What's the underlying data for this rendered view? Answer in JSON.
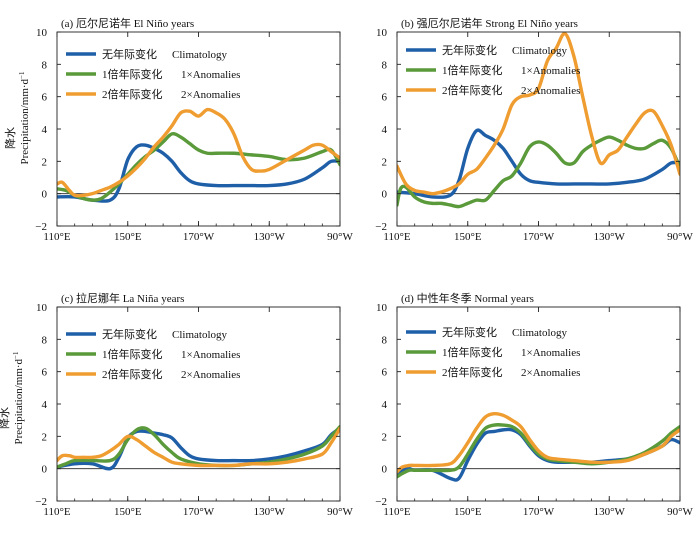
{
  "figure": {
    "ylabel_cn": "降水",
    "ylabel_en": "Precipitation/mm·d",
    "ylabel_sup": "−1",
    "xticklabels": [
      "110°E",
      "150°E",
      "170°W",
      "130°W",
      "90°W"
    ],
    "yticklabels": [
      "−2",
      "0",
      "2",
      "4",
      "6",
      "8",
      "10"
    ],
    "colors": {
      "climatology": "#1f5fa8",
      "anom1": "#5a9a3a",
      "anom2": "#ef9d30"
    }
  },
  "chart_data": [
    {
      "type": "line",
      "title": "(a) 厄尔尼诺年 El Niño years",
      "xticks": [
        110,
        150,
        190,
        230,
        270
      ],
      "xlim": [
        110,
        270
      ],
      "ylim": [
        -2,
        10
      ],
      "legend_position": "top",
      "series": [
        {
          "key": "climatology",
          "name": "无年际变化 Climatology",
          "x": [
            110,
            120,
            130,
            140,
            145,
            150,
            155,
            160,
            165,
            170,
            175,
            180,
            185,
            190,
            200,
            210,
            220,
            230,
            240,
            250,
            260,
            265,
            270
          ],
          "y": [
            -0.2,
            -0.2,
            -0.4,
            -0.4,
            0.3,
            2.1,
            2.9,
            3.0,
            2.8,
            2.5,
            2.0,
            1.3,
            0.8,
            0.6,
            0.5,
            0.5,
            0.5,
            0.5,
            0.6,
            0.9,
            1.6,
            2.0,
            2.0
          ]
        },
        {
          "key": "anom1",
          "name": "1倍年际变化 1×Anomalies",
          "x": [
            110,
            115,
            120,
            125,
            130,
            135,
            140,
            145,
            150,
            155,
            160,
            165,
            170,
            175,
            180,
            185,
            190,
            195,
            200,
            210,
            220,
            230,
            240,
            250,
            260,
            265,
            270
          ],
          "y": [
            0.3,
            0.2,
            -0.1,
            -0.3,
            -0.4,
            -0.3,
            0.1,
            0.6,
            1.2,
            1.8,
            2.3,
            2.7,
            3.2,
            3.7,
            3.5,
            3.1,
            2.7,
            2.5,
            2.5,
            2.5,
            2.4,
            2.3,
            2.1,
            2.2,
            2.6,
            2.7,
            1.8
          ]
        },
        {
          "key": "anom2",
          "name": "2倍年际变化 2×Anomalies",
          "x": [
            110,
            113,
            117,
            120,
            125,
            130,
            135,
            140,
            145,
            150,
            155,
            160,
            165,
            170,
            175,
            180,
            185,
            190,
            195,
            200,
            205,
            210,
            215,
            220,
            225,
            230,
            240,
            250,
            255,
            260,
            265,
            270
          ],
          "y": [
            0.6,
            0.7,
            0.2,
            -0.1,
            -0.1,
            0.0,
            0.2,
            0.4,
            0.7,
            1.1,
            1.6,
            2.2,
            2.9,
            3.5,
            4.2,
            5.0,
            5.1,
            4.8,
            5.2,
            5.0,
            4.6,
            3.7,
            2.3,
            1.5,
            1.4,
            1.5,
            2.1,
            2.7,
            3.0,
            3.0,
            2.6,
            2.2
          ]
        }
      ]
    },
    {
      "type": "line",
      "title": "(b) 强厄尔尼诺年 Strong El Niño years",
      "xticks": [
        110,
        150,
        190,
        230,
        270
      ],
      "xlim": [
        110,
        270
      ],
      "ylim": [
        -2,
        10
      ],
      "legend_position": "top",
      "series": [
        {
          "key": "climatology",
          "name": "无年际变化 Climatology",
          "x": [
            110,
            120,
            130,
            140,
            145,
            150,
            155,
            160,
            165,
            170,
            175,
            180,
            185,
            190,
            200,
            210,
            220,
            230,
            240,
            250,
            260,
            265,
            270
          ],
          "y": [
            0.1,
            0.0,
            -0.2,
            -0.1,
            0.8,
            2.8,
            3.9,
            3.6,
            3.3,
            2.8,
            2.0,
            1.2,
            0.8,
            0.7,
            0.6,
            0.6,
            0.6,
            0.6,
            0.7,
            0.9,
            1.5,
            1.9,
            1.9
          ]
        },
        {
          "key": "anom1",
          "name": "1倍年际变化 1×Anomalies",
          "x": [
            110,
            112,
            115,
            120,
            125,
            130,
            135,
            140,
            145,
            150,
            155,
            160,
            165,
            170,
            175,
            180,
            185,
            190,
            195,
            200,
            205,
            210,
            215,
            220,
            225,
            230,
            235,
            240,
            245,
            250,
            255,
            260,
            265,
            270
          ],
          "y": [
            -0.7,
            0.3,
            0.4,
            -0.2,
            -0.5,
            -0.6,
            -0.6,
            -0.7,
            -0.8,
            -0.6,
            -0.4,
            -0.4,
            0.2,
            0.8,
            1.1,
            1.9,
            2.9,
            3.2,
            3.0,
            2.5,
            1.9,
            1.9,
            2.6,
            3.0,
            3.3,
            3.5,
            3.3,
            3.0,
            2.8,
            2.8,
            3.1,
            3.3,
            2.8,
            1.6
          ]
        },
        {
          "key": "anom2",
          "name": "2倍年际变化 2×Anomalies",
          "x": [
            110,
            115,
            120,
            125,
            130,
            135,
            140,
            145,
            150,
            155,
            160,
            165,
            170,
            175,
            180,
            185,
            190,
            195,
            200,
            205,
            210,
            215,
            220,
            225,
            230,
            235,
            240,
            245,
            250,
            255,
            260,
            265,
            270
          ],
          "y": [
            1.7,
            0.6,
            0.2,
            0.1,
            0.0,
            0.1,
            0.3,
            0.6,
            1.2,
            1.5,
            2.2,
            3.0,
            4.0,
            5.5,
            6.0,
            6.1,
            6.5,
            8.2,
            9.0,
            9.9,
            8.5,
            6.0,
            3.6,
            1.9,
            2.4,
            2.7,
            3.5,
            4.3,
            5.0,
            5.1,
            4.2,
            3.0,
            1.2
          ]
        }
      ]
    },
    {
      "type": "line",
      "title": "(c) 拉尼娜年 La Niña years",
      "xticks": [
        110,
        150,
        190,
        230,
        270
      ],
      "xlim": [
        110,
        270
      ],
      "ylim": [
        -2,
        10
      ],
      "legend_position": "top",
      "series": [
        {
          "key": "climatology",
          "name": "无年际变化 Climatology",
          "x": [
            110,
            120,
            130,
            140,
            145,
            150,
            155,
            160,
            165,
            170,
            175,
            180,
            185,
            190,
            200,
            210,
            220,
            230,
            240,
            250,
            260,
            265,
            270
          ],
          "y": [
            0.1,
            0.3,
            0.3,
            0.0,
            0.7,
            1.9,
            2.3,
            2.3,
            2.2,
            2.1,
            1.9,
            1.3,
            0.8,
            0.6,
            0.5,
            0.5,
            0.5,
            0.6,
            0.8,
            1.1,
            1.5,
            2.1,
            2.5
          ]
        },
        {
          "key": "anom1",
          "name": "1倍年际变化 1×Anomalies",
          "x": [
            110,
            115,
            120,
            130,
            140,
            145,
            150,
            155,
            160,
            165,
            170,
            175,
            180,
            190,
            200,
            210,
            220,
            230,
            240,
            250,
            260,
            265,
            270
          ],
          "y": [
            0.1,
            0.3,
            0.5,
            0.5,
            0.5,
            0.9,
            1.8,
            2.4,
            2.5,
            2.1,
            1.5,
            1.0,
            0.6,
            0.3,
            0.2,
            0.2,
            0.3,
            0.4,
            0.6,
            0.9,
            1.4,
            2.0,
            2.6
          ]
        },
        {
          "key": "anom2",
          "name": "2倍年际变化 2×Anomalies",
          "x": [
            110,
            113,
            117,
            120,
            125,
            130,
            135,
            140,
            145,
            150,
            155,
            160,
            165,
            170,
            175,
            180,
            190,
            200,
            210,
            220,
            230,
            240,
            250,
            260,
            265,
            270
          ],
          "y": [
            0.5,
            0.8,
            0.8,
            0.7,
            0.7,
            0.7,
            0.8,
            1.1,
            1.5,
            2.0,
            1.8,
            1.4,
            1.0,
            0.7,
            0.4,
            0.3,
            0.2,
            0.2,
            0.2,
            0.3,
            0.3,
            0.4,
            0.6,
            0.9,
            1.6,
            2.5
          ]
        }
      ]
    },
    {
      "type": "line",
      "title": "(d) 中性年冬季 Normal years",
      "xticks": [
        110,
        150,
        190,
        230,
        270
      ],
      "xlim": [
        110,
        270
      ],
      "ylim": [
        -2,
        10
      ],
      "legend_position": "top",
      "series": [
        {
          "key": "climatology",
          "name": "无年际变化 Climatology",
          "x": [
            110,
            113,
            117,
            120,
            130,
            140,
            145,
            150,
            155,
            160,
            165,
            170,
            175,
            180,
            185,
            190,
            195,
            200,
            210,
            220,
            230,
            240,
            250,
            260,
            265,
            270
          ],
          "y": [
            -0.4,
            -0.1,
            0.0,
            -0.1,
            -0.1,
            -0.6,
            -0.6,
            0.5,
            1.5,
            2.2,
            2.3,
            2.4,
            2.4,
            2.1,
            1.4,
            0.8,
            0.5,
            0.4,
            0.4,
            0.4,
            0.5,
            0.6,
            0.9,
            1.4,
            1.8,
            1.6
          ]
        },
        {
          "key": "anom1",
          "name": "1倍年际变化 1×Anomalies",
          "x": [
            110,
            113,
            117,
            120,
            130,
            140,
            145,
            150,
            155,
            160,
            165,
            170,
            175,
            180,
            185,
            190,
            195,
            200,
            210,
            220,
            230,
            240,
            250,
            260,
            265,
            270
          ],
          "y": [
            -0.5,
            -0.3,
            -0.1,
            -0.1,
            -0.1,
            -0.1,
            0.1,
            0.9,
            1.8,
            2.5,
            2.7,
            2.7,
            2.6,
            2.2,
            1.5,
            0.9,
            0.6,
            0.5,
            0.4,
            0.3,
            0.4,
            0.6,
            1.0,
            1.7,
            2.2,
            2.6
          ]
        },
        {
          "key": "anom2",
          "name": "2倍年际变化 2×Anomalies",
          "x": [
            110,
            113,
            117,
            120,
            130,
            140,
            145,
            150,
            155,
            160,
            165,
            170,
            175,
            180,
            185,
            190,
            195,
            200,
            210,
            220,
            230,
            240,
            250,
            260,
            265,
            270
          ],
          "y": [
            -0.2,
            0.1,
            0.2,
            0.2,
            0.2,
            0.3,
            0.8,
            1.6,
            2.5,
            3.2,
            3.4,
            3.3,
            3.0,
            2.6,
            1.8,
            1.1,
            0.7,
            0.6,
            0.5,
            0.4,
            0.4,
            0.5,
            0.9,
            1.4,
            2.0,
            2.4
          ]
        }
      ]
    }
  ]
}
